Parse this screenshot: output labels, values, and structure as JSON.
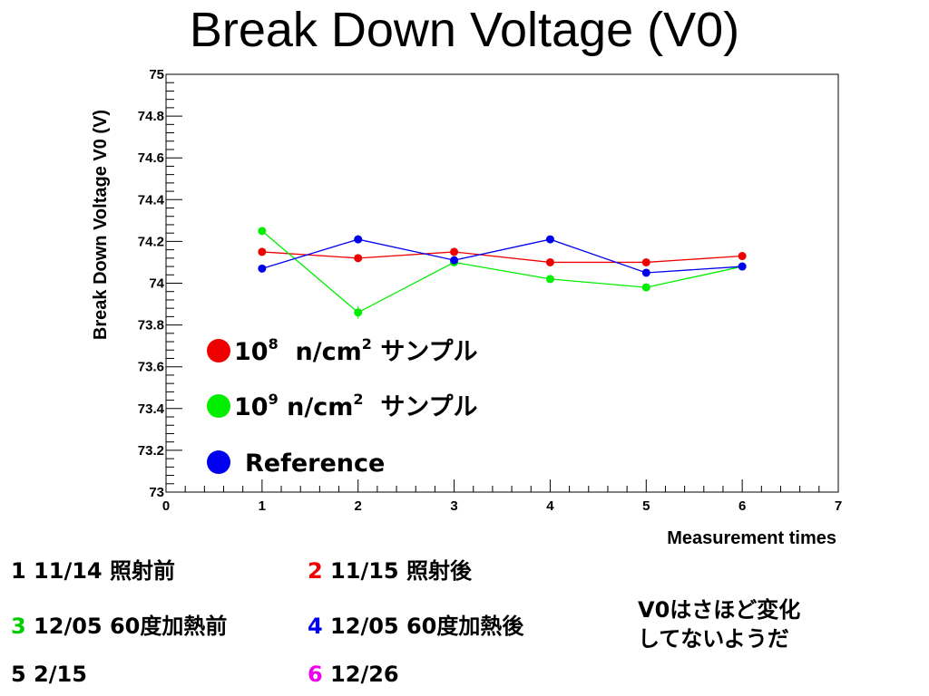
{
  "title": "Break Down Voltage (V0)",
  "colors": {
    "red": "#ee0000",
    "green": "#00ee00",
    "blue": "#0000ee",
    "magenta": "#ee00ee"
  },
  "chart_data": {
    "type": "scatter",
    "title": "",
    "xlabel": "Measurement times",
    "ylabel": "Break Down Voltage V0 (V)",
    "xlim": [
      0,
      7
    ],
    "ylim": [
      73,
      75
    ],
    "x_ticks": [
      "0",
      "1",
      "2",
      "3",
      "4",
      "5",
      "6",
      "7"
    ],
    "y_ticks": [
      "73",
      "73.2",
      "73.4",
      "73.6",
      "73.8",
      "74",
      "74.2",
      "74.4",
      "74.6",
      "74.8",
      "75"
    ],
    "grid": false,
    "lines_connected": true,
    "series": [
      {
        "name": "10^8 n/cm^2 サンプル",
        "color": "#ee0000",
        "x": [
          1,
          2,
          3,
          4,
          5,
          6
        ],
        "y": [
          74.15,
          74.12,
          74.15,
          74.1,
          74.1,
          74.13
        ],
        "err": [
          0.015,
          0.01,
          0.01,
          0.01,
          0.01,
          0.01
        ]
      },
      {
        "name": "10^9 n/cm^2 サンプル",
        "color": "#00ee00",
        "x": [
          1,
          2,
          3,
          4,
          5,
          6
        ],
        "y": [
          74.25,
          73.86,
          74.1,
          74.02,
          73.98,
          74.08
        ],
        "err": [
          0.015,
          0.03,
          0.01,
          0.01,
          0.01,
          0.01
        ]
      },
      {
        "name": "Reference",
        "color": "#0000ee",
        "x": [
          1,
          2,
          3,
          4,
          5,
          6
        ],
        "y": [
          74.07,
          74.21,
          74.11,
          74.21,
          74.05,
          74.08
        ],
        "err": [
          0.015,
          0.02,
          0.01,
          0.01,
          0.01,
          0.01
        ]
      }
    ],
    "legend": [
      {
        "base": "10",
        "exp": "8",
        "unit": "n/cm",
        "unit_exp": "2",
        "suffix": "サンプル",
        "color": "#ee0000"
      },
      {
        "base": "10",
        "exp": "9",
        "unit": "n/cm",
        "unit_exp": "2",
        "suffix": "サンプル",
        "color": "#00ee00"
      },
      {
        "text": "Reference",
        "color": "#0000ee"
      }
    ]
  },
  "notes": [
    {
      "num": "1",
      "text": " 11/14  照射前",
      "num_color": "#000000"
    },
    {
      "num": "2",
      "text": " 11/15  照射後",
      "num_color": "#ee0000"
    },
    {
      "num": "3",
      "text": " 12/05  60度加熱前",
      "num_color": "#00cc00"
    },
    {
      "num": "4",
      "text": " 12/05  60度加熱後",
      "num_color": "#0000ee"
    },
    {
      "num": "5",
      "text": "  2/15",
      "num_color": "#000000"
    },
    {
      "num": "6",
      "text": " 12/26",
      "num_color": "#ee00ee"
    }
  ],
  "comment": {
    "line1": "V0はさほど変化",
    "line2": "してないようだ"
  }
}
